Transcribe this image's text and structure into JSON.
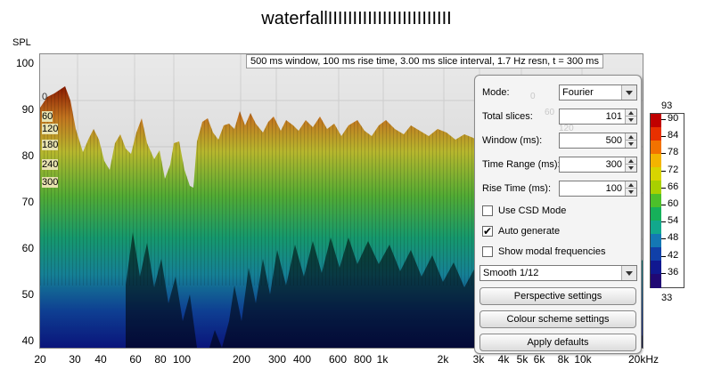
{
  "title": "waterfallIIIIIIIIIIIIIIIIIIIIIIIII",
  "y_axis": {
    "label": "SPL",
    "ticks": [
      "100",
      "90",
      "80",
      "70",
      "60",
      "50",
      "40"
    ]
  },
  "x_axis": {
    "ticks": [
      "20",
      "30",
      "40",
      "60",
      "80",
      "100",
      "200",
      "300",
      "400",
      "600",
      "800",
      "1k",
      "2k",
      "3k",
      "4k",
      "5k",
      "6k",
      "8k",
      "10k",
      "20kHz"
    ]
  },
  "info_text": "500 ms window, 100 ms rise time, 3.00 ms slice interval, 1.7 Hz resn, t = 300 ms",
  "slice_labels": [
    "0",
    "60",
    "120",
    "180",
    "240",
    "300"
  ],
  "ghost_labels": [
    "0",
    "60",
    "120"
  ],
  "panel": {
    "mode_label": "Mode:",
    "mode_value": "Fourier",
    "total_slices_label": "Total slices:",
    "total_slices_value": "101",
    "window_label": "Window (ms):",
    "window_value": "500",
    "time_range_label": "Time Range (ms):",
    "time_range_value": "300",
    "rise_time_label": "Rise Time (ms):",
    "rise_time_value": "100",
    "use_csd_label": "Use CSD Mode",
    "use_csd_checked": false,
    "auto_generate_label": "Auto generate",
    "auto_generate_checked": true,
    "show_modal_label": "Show modal frequencies",
    "show_modal_checked": false,
    "smoothing_value": "Smooth 1/12",
    "perspective_button": "Perspective settings",
    "colour_button": "Colour scheme settings",
    "defaults_button": "Apply defaults"
  },
  "colour_scale": {
    "max_label": "93",
    "min_label": "33",
    "ticks": [
      "90",
      "84",
      "78",
      "72",
      "66",
      "60",
      "54",
      "48",
      "42",
      "36"
    ],
    "colors": [
      "#c00000",
      "#e83000",
      "#f27200",
      "#f3b400",
      "#d8d400",
      "#a8d000",
      "#4cc02a",
      "#16b05a",
      "#12a88c",
      "#1478b4",
      "#1040a8",
      "#101890",
      "#200874"
    ]
  }
}
